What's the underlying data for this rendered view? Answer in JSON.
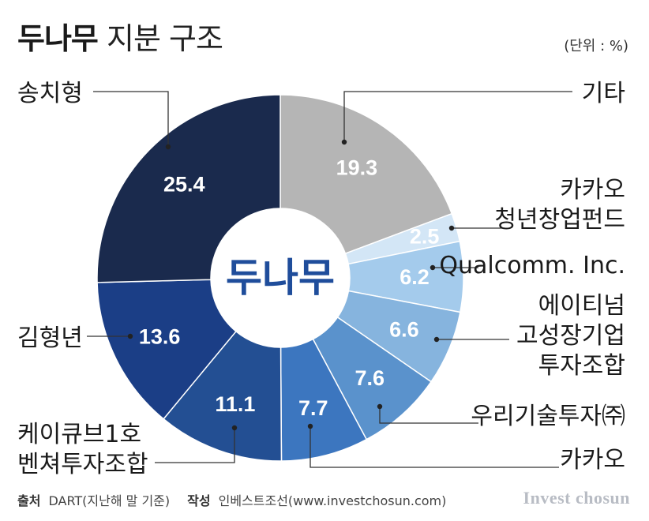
{
  "header": {
    "title_bold": "두나무",
    "title_rest": "지분 구조",
    "unit": "(단위 : %)"
  },
  "chart_data": {
    "type": "pie",
    "center_label": "두나무",
    "slices": [
      {
        "label": [
          "기타"
        ],
        "value": 19.3,
        "color": "#b5b5b5",
        "text_color": "#ffffff"
      },
      {
        "label": [
          "카카오",
          "청년창업펀드"
        ],
        "value": 2.5,
        "color": "#d3e6f6",
        "text_color": "#ffffff"
      },
      {
        "label": [
          "Qualcomm. Inc."
        ],
        "value": 6.2,
        "color": "#a4cbec",
        "text_color": "#ffffff"
      },
      {
        "label": [
          "에이티넘",
          "고성장기업",
          "투자조합"
        ],
        "value": 6.6,
        "color": "#86b4de",
        "text_color": "#ffffff"
      },
      {
        "label": [
          "우리기술투자㈜"
        ],
        "value": 7.6,
        "color": "#5a92cc",
        "text_color": "#ffffff"
      },
      {
        "label": [
          "카카오"
        ],
        "value": 7.7,
        "color": "#3c76bf",
        "text_color": "#ffffff"
      },
      {
        "label": [
          "케이큐브1호",
          "벤쳐투자조합"
        ],
        "value": 11.1,
        "color": "#234f93",
        "text_color": "#ffffff"
      },
      {
        "label": [
          "김형년"
        ],
        "value": 13.6,
        "color": "#1b3e86",
        "text_color": "#ffffff"
      },
      {
        "label": [
          "송치형"
        ],
        "value": 25.4,
        "color": "#1a2a4d",
        "text_color": "#ffffff"
      }
    ]
  },
  "footer": {
    "source_label": "출처",
    "source_text": "DART(지난해 말 기준)",
    "author_label": "작성",
    "author_text": "인베스트조선(www.investchosun.com)",
    "brand": "Invest chosun"
  }
}
